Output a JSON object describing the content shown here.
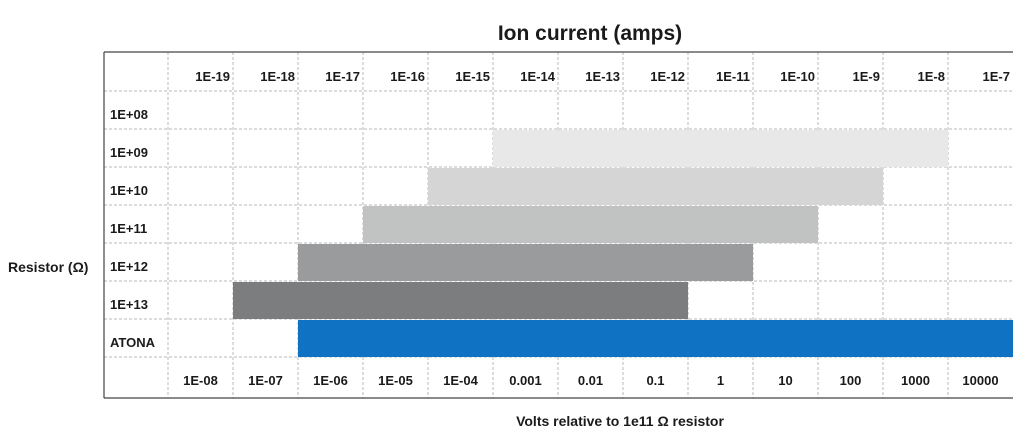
{
  "chart_data": {
    "type": "table",
    "title": "Ion current (amps)",
    "ylabel": "Resistor (Ω)",
    "xlabel": "Volts relative to 1e11 Ω resistor",
    "current_labels": [
      "1E-19",
      "1E-18",
      "1E-17",
      "1E-16",
      "1E-15",
      "1E-14",
      "1E-13",
      "1E-12",
      "1E-11",
      "1E-10",
      "1E-9",
      "1E-8",
      "1E-7"
    ],
    "volt_labels": [
      "1E-08",
      "1E-07",
      "1E-06",
      "1E-05",
      "1E-04",
      "0.001",
      "0.01",
      "0.1",
      "1",
      "10",
      "100",
      "1000",
      "10000"
    ],
    "rows": [
      {
        "label": "1E+08",
        "range": null,
        "color": null
      },
      {
        "label": "1E+09",
        "range": [
          "1E-14",
          "1E-8"
        ],
        "color": "#e8e8e8"
      },
      {
        "label": "1E+10",
        "range": [
          "1E-15",
          "1E-9"
        ],
        "color": "#d5d5d5"
      },
      {
        "label": "1E+11",
        "range": [
          "1E-16",
          "1E-10"
        ],
        "color": "#c1c2c2"
      },
      {
        "label": "1E+12",
        "range": [
          "1E-17",
          "1E-11"
        ],
        "color": "#999b9c"
      },
      {
        "label": "1E+13",
        "range": [
          "1E-18",
          "1E-12"
        ],
        "color": "#7b7d7e"
      },
      {
        "label": "ATONA",
        "range": [
          "1E-17",
          "1E-7"
        ],
        "color": "#0f72c2"
      }
    ],
    "grid": true,
    "grid_style": "dashed"
  }
}
